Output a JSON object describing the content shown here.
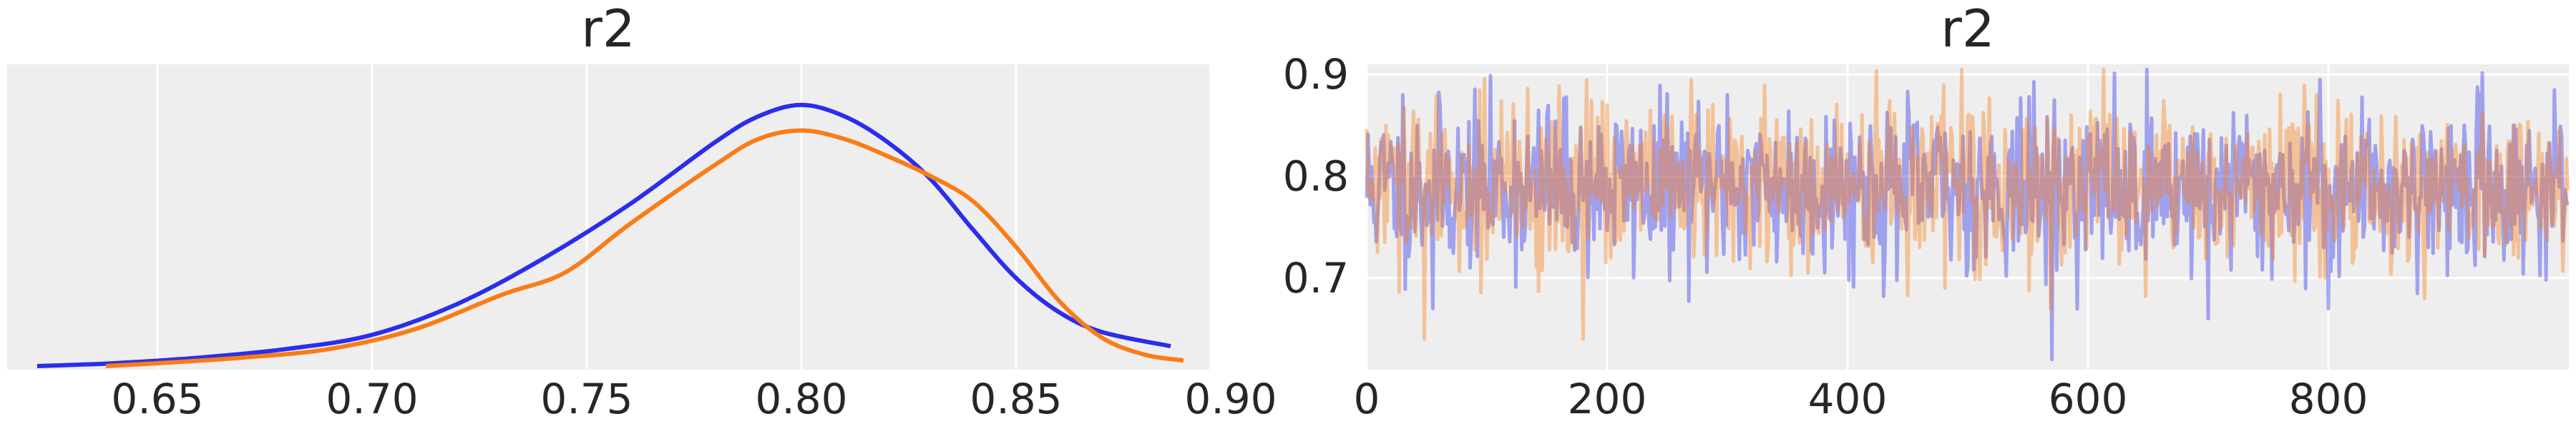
{
  "chart_data": [
    {
      "type": "line",
      "title": "r2",
      "xlabel": "",
      "ylabel": "",
      "xlim": [
        0.615,
        0.895
      ],
      "ylim": [
        0,
        1
      ],
      "x_ticks": [
        "0.65",
        "0.70",
        "0.75",
        "0.80",
        "0.85",
        "0.90"
      ],
      "x_tick_values": [
        0.65,
        0.7,
        0.75,
        0.8,
        0.85,
        0.9
      ],
      "y_ticks": [],
      "grid": true,
      "series": [
        {
          "color": "#2a2eec",
          "x": [
            0.622,
            0.64,
            0.66,
            0.68,
            0.7,
            0.72,
            0.74,
            0.76,
            0.78,
            0.79,
            0.8,
            0.81,
            0.82,
            0.83,
            0.84,
            0.85,
            0.86,
            0.87,
            0.886
          ],
          "y": [
            0.0,
            0.01,
            0.03,
            0.06,
            0.11,
            0.22,
            0.38,
            0.57,
            0.79,
            0.88,
            0.92,
            0.88,
            0.79,
            0.66,
            0.48,
            0.31,
            0.19,
            0.12,
            0.07
          ]
        },
        {
          "color": "#fa7c17",
          "x": [
            0.638,
            0.65,
            0.67,
            0.69,
            0.71,
            0.73,
            0.745,
            0.76,
            0.78,
            0.79,
            0.8,
            0.81,
            0.82,
            0.83,
            0.84,
            0.85,
            0.86,
            0.87,
            0.88,
            0.889
          ],
          "y": [
            0.0,
            0.01,
            0.03,
            0.06,
            0.13,
            0.25,
            0.33,
            0.5,
            0.71,
            0.8,
            0.83,
            0.8,
            0.74,
            0.67,
            0.58,
            0.42,
            0.23,
            0.1,
            0.04,
            0.02
          ]
        }
      ]
    },
    {
      "type": "line",
      "title": "r2",
      "xlabel": "",
      "ylabel": "",
      "xlim": [
        0,
        1000
      ],
      "ylim": [
        0.61,
        0.91
      ],
      "x_ticks": [
        "0",
        "200",
        "400",
        "600",
        "800"
      ],
      "x_tick_values": [
        0,
        200,
        400,
        600,
        800
      ],
      "y_ticks": [
        "0.7",
        "0.8",
        "0.9"
      ],
      "y_tick_values": [
        0.7,
        0.8,
        0.9
      ],
      "grid": true,
      "series": [
        {
          "color": "#2a2eec",
          "opacity": 0.4,
          "n_draws": 1000,
          "mean": 0.79,
          "sd": 0.04,
          "seed": 11,
          "highlights": [
            [
              30,
              0.88
            ],
            [
              55,
              0.67
            ],
            [
              150,
              0.86
            ],
            [
              300,
              0.88
            ],
            [
              570,
              0.62
            ],
            [
              700,
              0.66
            ],
            [
              800,
              0.67
            ]
          ]
        },
        {
          "color": "#fa7c17",
          "opacity": 0.4,
          "n_draws": 1000,
          "mean": 0.79,
          "sd": 0.04,
          "seed": 29,
          "highlights": [
            [
              48,
              0.64
            ],
            [
              180,
              0.64
            ],
            [
              200,
              0.87
            ],
            [
              480,
              0.89
            ],
            [
              790,
              0.88
            ],
            [
              880,
              0.68
            ],
            [
              960,
              0.85
            ]
          ]
        }
      ]
    }
  ]
}
